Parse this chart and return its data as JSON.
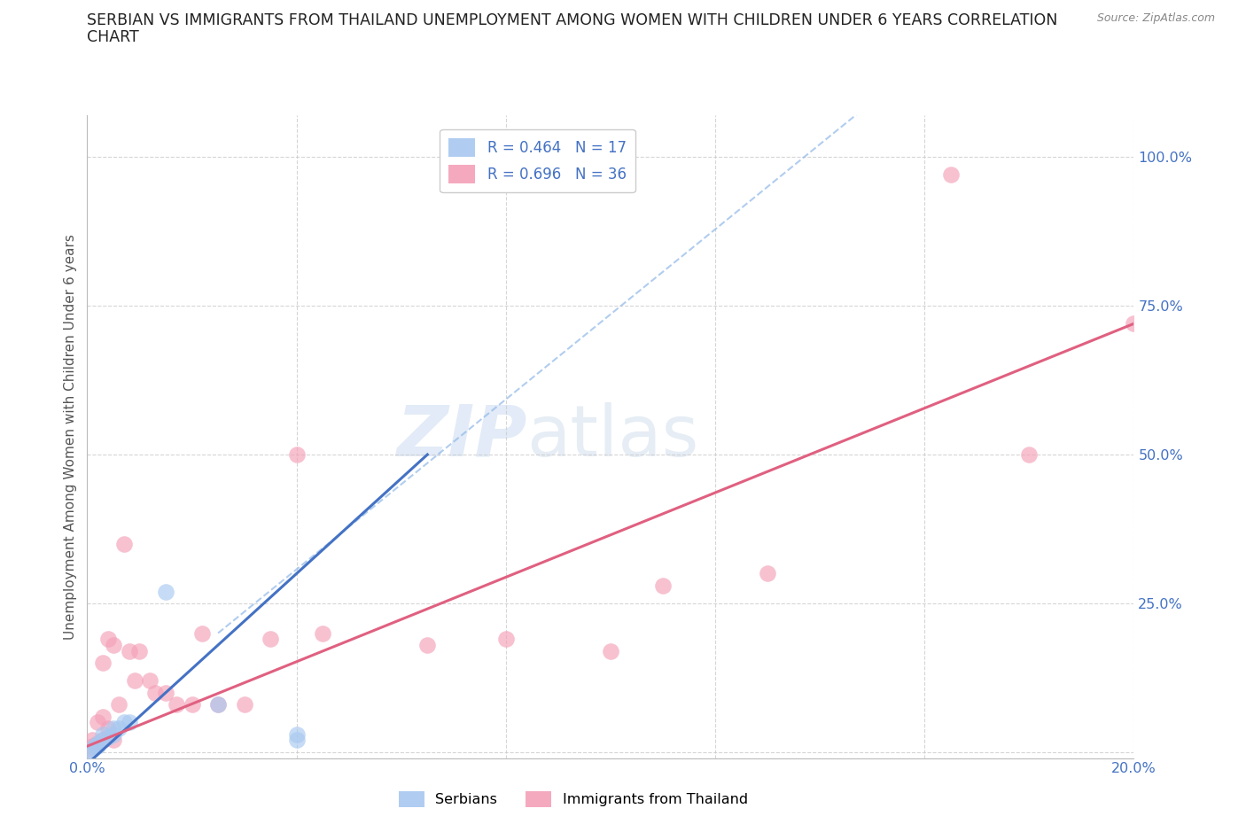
{
  "title_line1": "SERBIAN VS IMMIGRANTS FROM THAILAND UNEMPLOYMENT AMONG WOMEN WITH CHILDREN UNDER 6 YEARS CORRELATION",
  "title_line2": "CHART",
  "source": "Source: ZipAtlas.com",
  "ylabel": "Unemployment Among Women with Children Under 6 years",
  "xlim": [
    0.0,
    0.2
  ],
  "ylim": [
    -0.01,
    1.07
  ],
  "watermark_text": "ZIPatlas",
  "legend_entries": [
    {
      "label": "R = 0.464   N = 17",
      "color": "#a8c8f0"
    },
    {
      "label": "R = 0.696   N = 36",
      "color": "#f4a0b8"
    }
  ],
  "serbian_points": [
    [
      0.0,
      0.0
    ],
    [
      0.001,
      0.005
    ],
    [
      0.0015,
      0.01
    ],
    [
      0.002,
      0.01
    ],
    [
      0.002,
      0.015
    ],
    [
      0.003,
      0.02
    ],
    [
      0.003,
      0.03
    ],
    [
      0.004,
      0.025
    ],
    [
      0.005,
      0.03
    ],
    [
      0.005,
      0.04
    ],
    [
      0.006,
      0.04
    ],
    [
      0.007,
      0.05
    ],
    [
      0.008,
      0.05
    ],
    [
      0.015,
      0.27
    ],
    [
      0.025,
      0.08
    ],
    [
      0.04,
      0.03
    ],
    [
      0.04,
      0.02
    ]
  ],
  "thai_points": [
    [
      0.0,
      0.005
    ],
    [
      0.001,
      0.01
    ],
    [
      0.001,
      0.02
    ],
    [
      0.002,
      0.015
    ],
    [
      0.002,
      0.05
    ],
    [
      0.003,
      0.02
    ],
    [
      0.003,
      0.06
    ],
    [
      0.003,
      0.15
    ],
    [
      0.004,
      0.04
    ],
    [
      0.004,
      0.19
    ],
    [
      0.005,
      0.18
    ],
    [
      0.005,
      0.02
    ],
    [
      0.006,
      0.08
    ],
    [
      0.007,
      0.35
    ],
    [
      0.008,
      0.17
    ],
    [
      0.009,
      0.12
    ],
    [
      0.01,
      0.17
    ],
    [
      0.012,
      0.12
    ],
    [
      0.013,
      0.1
    ],
    [
      0.015,
      0.1
    ],
    [
      0.017,
      0.08
    ],
    [
      0.02,
      0.08
    ],
    [
      0.022,
      0.2
    ],
    [
      0.025,
      0.08
    ],
    [
      0.03,
      0.08
    ],
    [
      0.035,
      0.19
    ],
    [
      0.04,
      0.5
    ],
    [
      0.045,
      0.2
    ],
    [
      0.065,
      0.18
    ],
    [
      0.08,
      0.19
    ],
    [
      0.1,
      0.17
    ],
    [
      0.11,
      0.28
    ],
    [
      0.13,
      0.3
    ],
    [
      0.165,
      0.97
    ],
    [
      0.18,
      0.5
    ],
    [
      0.2,
      0.72
    ]
  ],
  "serbian_color": "#a8c8f0",
  "thai_color": "#f4a0b8",
  "serbian_line_color": "#4472C4",
  "thai_line_color": "#e06080",
  "axis_label_color": "#4472C4",
  "grid_color": "#cccccc",
  "title_color": "#222222",
  "source_color": "#888888",
  "ytick_vals": [
    0.0,
    0.25,
    0.5,
    0.75,
    1.0
  ],
  "ytick_labels": [
    "",
    "25.0%",
    "50.0%",
    "75.0%",
    "100.0%"
  ],
  "xtick_vals": [
    0.0,
    0.04,
    0.08,
    0.12,
    0.16,
    0.2
  ],
  "xtick_labels": [
    "0.0%",
    "",
    "",
    "",
    "",
    "20.0%"
  ],
  "serbian_line_x": [
    0.0,
    0.065
  ],
  "serbian_line_y": [
    -0.02,
    0.5
  ],
  "thai_line_x": [
    0.0,
    0.2
  ],
  "thai_line_y": [
    0.01,
    0.72
  ]
}
